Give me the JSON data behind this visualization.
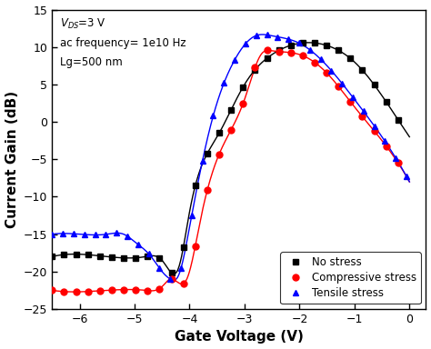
{
  "xlabel": "Gate Voltage (V)",
  "ylabel": "Current Gain (dB)",
  "xlim": [
    -6.5,
    0.3
  ],
  "ylim": [
    -25,
    15
  ],
  "xticks": [
    -6,
    -5,
    -4,
    -3,
    -2,
    -1,
    0
  ],
  "yticks": [
    -25,
    -20,
    -15,
    -10,
    -5,
    0,
    5,
    10,
    15
  ],
  "legend_labels": [
    "No stress",
    "Compressive stress",
    "Tensile stress"
  ],
  "colors": [
    "black",
    "red",
    "blue"
  ],
  "markers": [
    "s",
    "o",
    "^"
  ],
  "background": "#ffffff",
  "annotation_line1": "V",
  "annotation_line2": "ac frequency= 1e10 Hz",
  "annotation_line3": "Lg=500 nm"
}
